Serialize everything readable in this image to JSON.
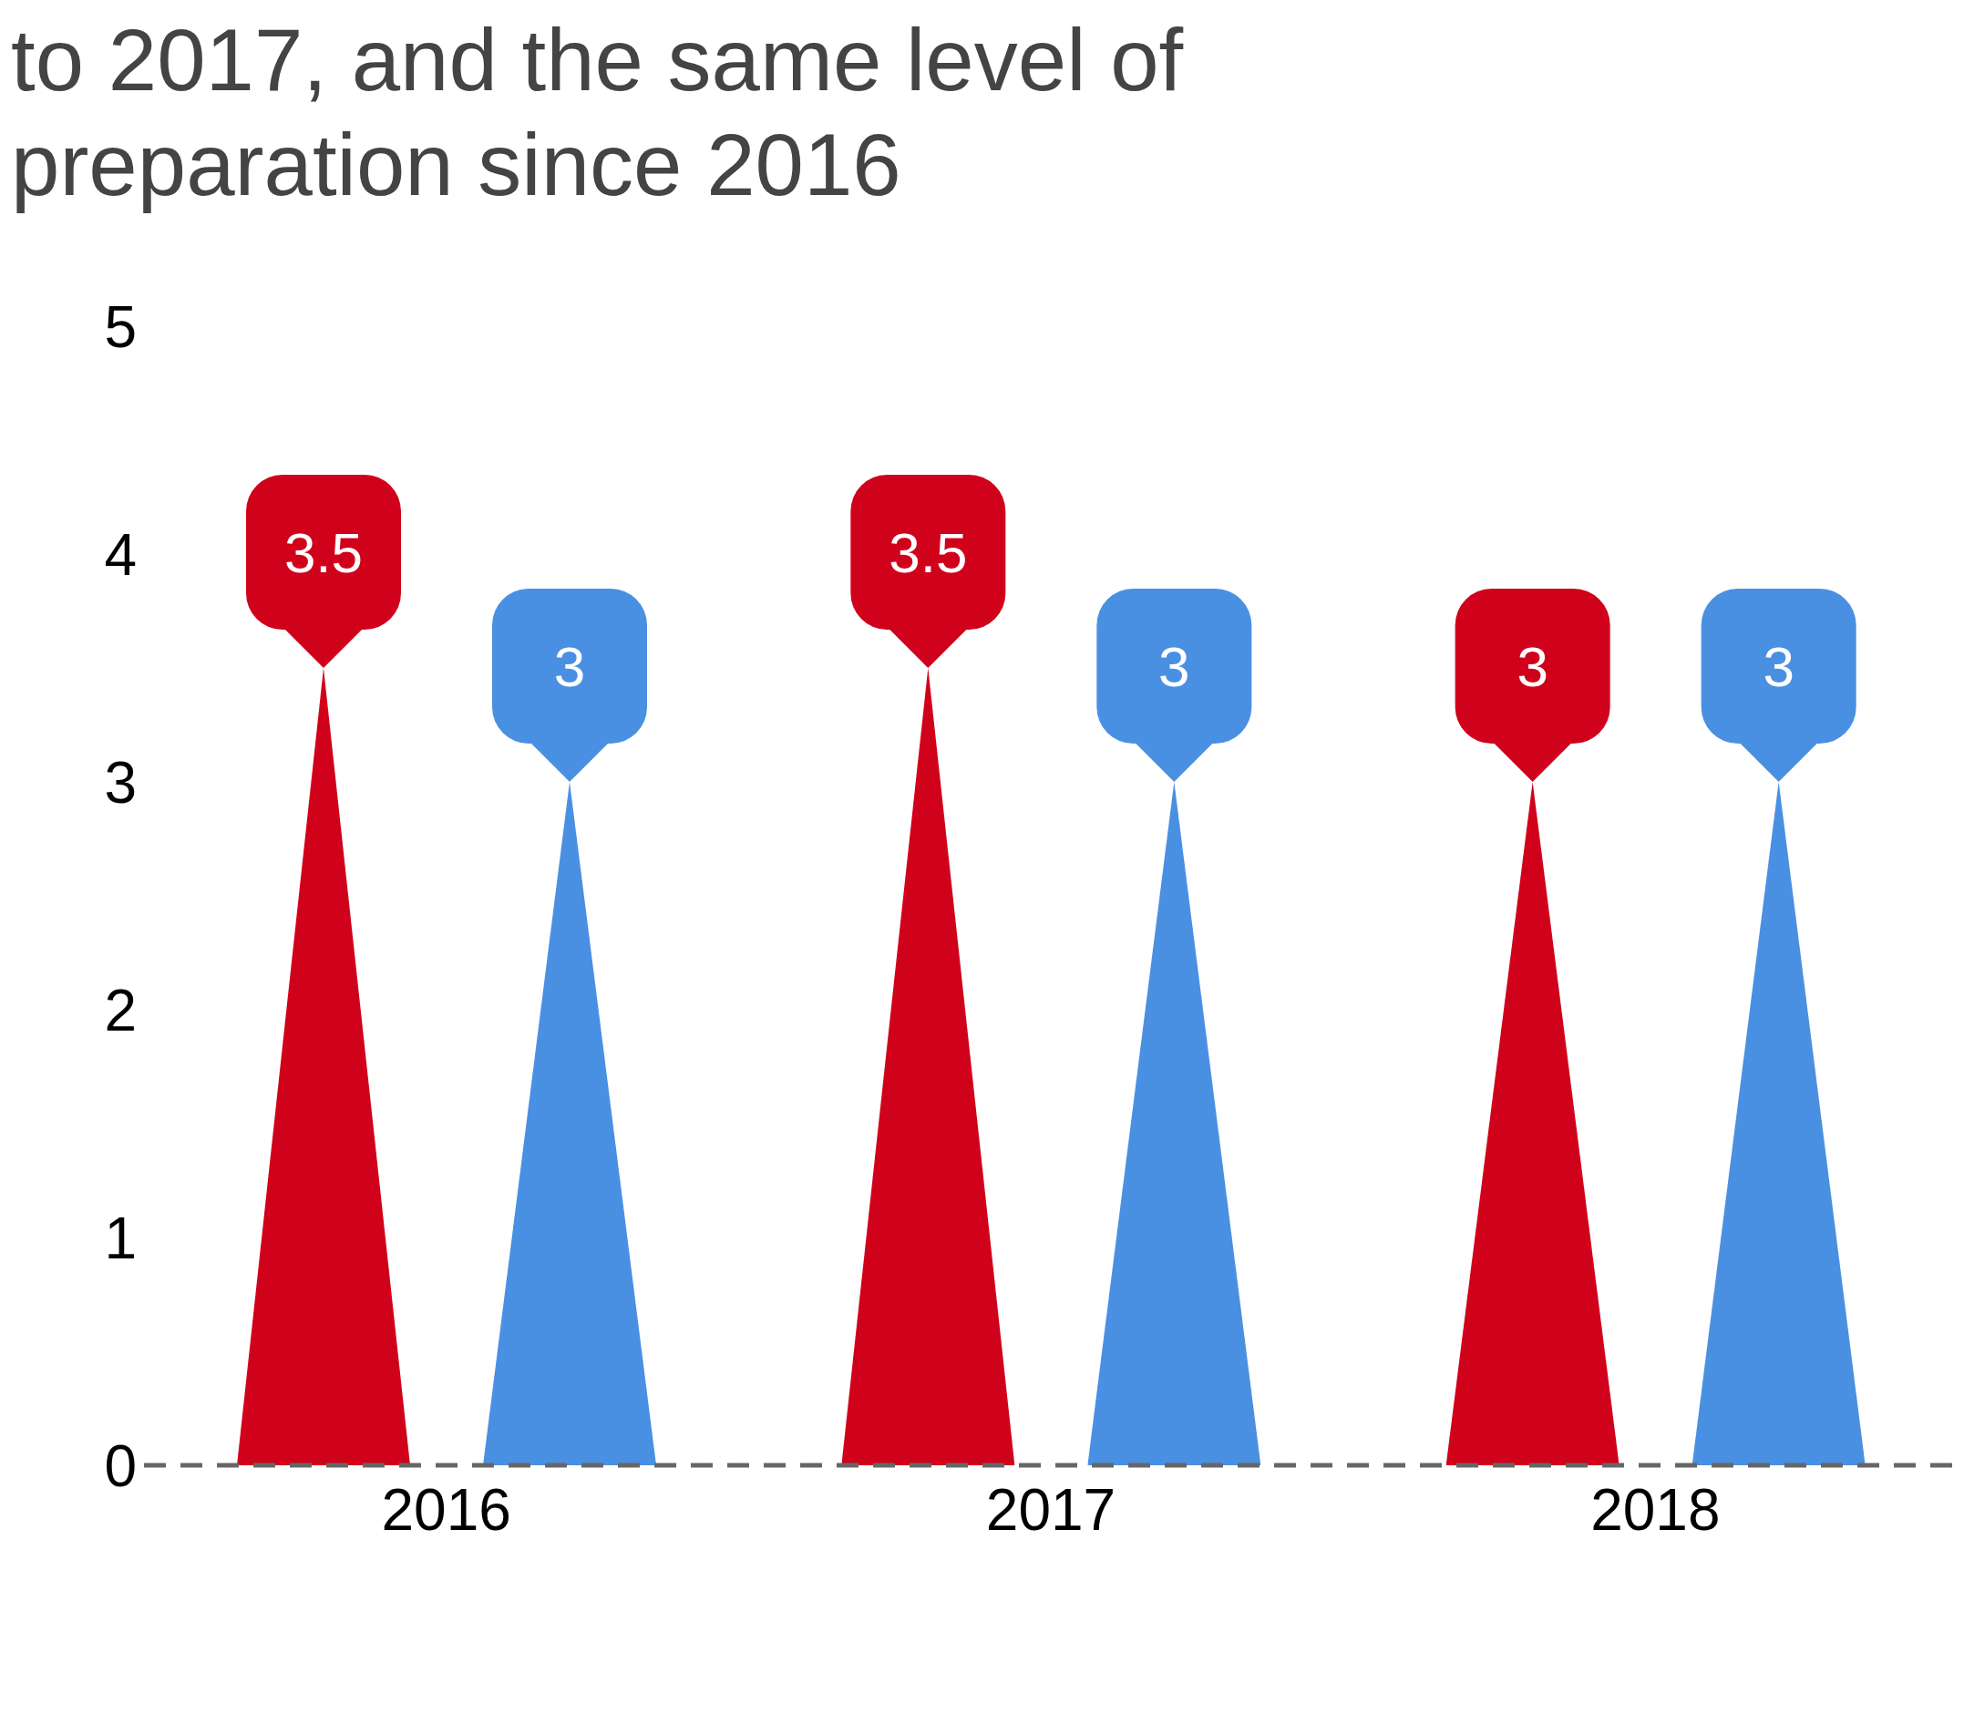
{
  "chart_data": {
    "type": "bar",
    "title": "to 2017, and the same level of preparation since 2016",
    "categories": [
      "2016",
      "2017",
      "2018"
    ],
    "series": [
      {
        "color": "#d0021b",
        "values": [
          3.5,
          3.5,
          3
        ]
      },
      {
        "color": "#4a90e2",
        "values": [
          3,
          3,
          3
        ]
      }
    ],
    "ylim": [
      0,
      5
    ],
    "yticks": [
      0,
      1,
      2,
      3,
      4,
      5
    ],
    "grid": false,
    "data_labels": true
  }
}
